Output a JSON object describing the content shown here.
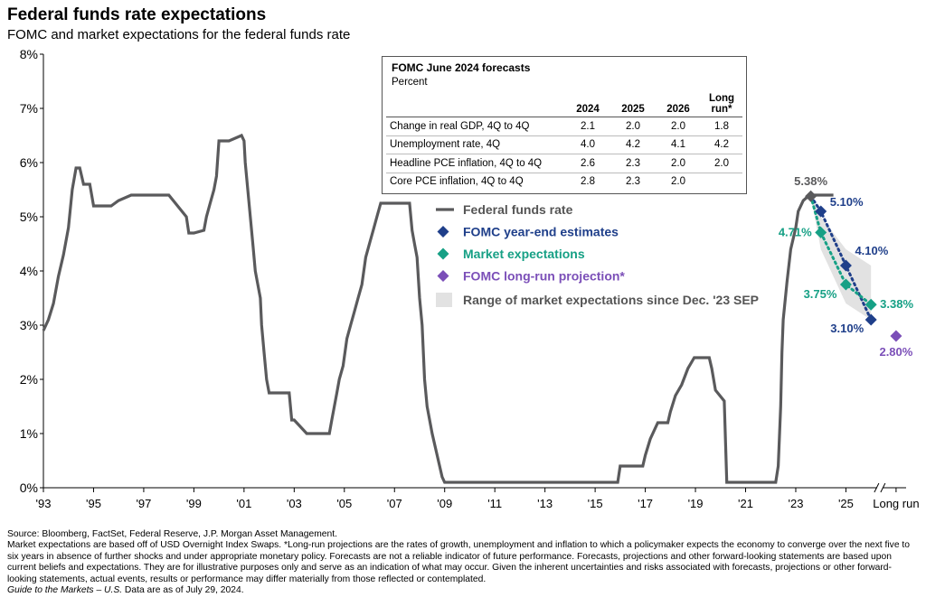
{
  "header": {
    "title": "Federal funds rate expectations",
    "subtitle": "FOMC and market expectations for the federal funds rate"
  },
  "colors": {
    "fed_funds": "#5a5a5c",
    "fomc": "#1f3f8a",
    "market": "#16a085",
    "longrun": "#7b4fb8",
    "range": "#e2e2e2",
    "table_border": "#555555"
  },
  "forecast_table": {
    "title": "FOMC June 2024 forecasts",
    "subtitle": "Percent",
    "columns": [
      "2024",
      "2025",
      "2026",
      "Long run*"
    ],
    "rows": [
      {
        "label": "Change in real GDP, 4Q to 4Q",
        "values": [
          "2.1",
          "2.0",
          "2.0",
          "1.8"
        ]
      },
      {
        "label": "Unemployment rate, 4Q",
        "values": [
          "4.0",
          "4.2",
          "4.1",
          "4.2"
        ]
      },
      {
        "label": "Headline PCE inflation, 4Q to 4Q",
        "values": [
          "2.6",
          "2.3",
          "2.0",
          "2.0"
        ]
      },
      {
        "label": "Core PCE inflation, 4Q to 4Q",
        "values": [
          "2.8",
          "2.3",
          "2.0",
          ""
        ]
      }
    ]
  },
  "legend": [
    {
      "label": "Federal funds rate",
      "marker": "line",
      "color_key": "fed_funds"
    },
    {
      "label": "FOMC year-end estimates",
      "marker": "diamond",
      "color_key": "fomc"
    },
    {
      "label": "Market expectations",
      "marker": "diamond",
      "color_key": "market"
    },
    {
      "label": "FOMC long-run projection*",
      "marker": "diamond",
      "color_key": "longrun"
    },
    {
      "label": "Range of market expectations since Dec. '23 SEP",
      "marker": "box",
      "color_key": "range"
    }
  ],
  "chart_data": {
    "type": "line",
    "title": "Federal funds rate expectations",
    "subtitle": "FOMC and market expectations for the federal funds rate",
    "ylim": [
      0,
      8
    ],
    "y_ticks": [
      "0%",
      "1%",
      "2%",
      "3%",
      "4%",
      "5%",
      "6%",
      "7%",
      "8%"
    ],
    "x_range": [
      1993,
      2027.4
    ],
    "x_ticks": [
      {
        "value": 1993,
        "label": "'93"
      },
      {
        "value": 1995,
        "label": "'95"
      },
      {
        "value": 1997,
        "label": "'97"
      },
      {
        "value": 1999,
        "label": "'99"
      },
      {
        "value": 2001,
        "label": "'01"
      },
      {
        "value": 2003,
        "label": "'03"
      },
      {
        "value": 2005,
        "label": "'05"
      },
      {
        "value": 2007,
        "label": "'07"
      },
      {
        "value": 2009,
        "label": "'09"
      },
      {
        "value": 2011,
        "label": "'11"
      },
      {
        "value": 2013,
        "label": "'13"
      },
      {
        "value": 2015,
        "label": "'15"
      },
      {
        "value": 2017,
        "label": "'17"
      },
      {
        "value": 2019,
        "label": "'19"
      },
      {
        "value": 2021,
        "label": "'21"
      },
      {
        "value": 2023,
        "label": "'23"
      },
      {
        "value": 2025,
        "label": "'25"
      },
      {
        "value": 2027,
        "label": "Long run"
      }
    ],
    "grid": false,
    "series": [
      {
        "name": "Federal funds rate",
        "color_key": "fed_funds",
        "x": [
          1993.0,
          1993.2,
          1993.4,
          1993.6,
          1993.8,
          1994.0,
          1994.15,
          1994.3,
          1994.45,
          1994.6,
          1994.85,
          1995.0,
          1995.1,
          1995.5,
          1995.7,
          1996.0,
          1996.5,
          1997.0,
          1997.3,
          1997.6,
          1998.0,
          1998.7,
          1998.8,
          1998.9,
          1999.0,
          1999.4,
          1999.5,
          1999.65,
          1999.8,
          1999.9,
          2000.0,
          2000.2,
          2000.4,
          2000.9,
          2001.0,
          2001.05,
          2001.15,
          2001.25,
          2001.35,
          2001.45,
          2001.55,
          2001.65,
          2001.7,
          2001.8,
          2001.9,
          2002.0,
          2002.8,
          2002.9,
          2003.0,
          2003.5,
          2003.6,
          2004.0,
          2004.4,
          2004.5,
          2004.6,
          2004.7,
          2004.8,
          2004.95,
          2005.1,
          2005.25,
          2005.4,
          2005.55,
          2005.7,
          2005.85,
          2006.0,
          2006.15,
          2006.3,
          2006.45,
          2007.6,
          2007.7,
          2007.8,
          2007.9,
          2008.0,
          2008.1,
          2008.2,
          2008.3,
          2008.5,
          2008.9,
          2009.0,
          2015.9,
          2016.0,
          2016.9,
          2017.0,
          2017.2,
          2017.5,
          2017.9,
          2018.0,
          2018.2,
          2018.45,
          2018.7,
          2018.95,
          2019.55,
          2019.65,
          2019.8,
          2020.15,
          2020.25,
          2022.2,
          2022.3,
          2022.4,
          2022.45,
          2022.5,
          2022.65,
          2022.8,
          2022.9,
          2023.0,
          2023.1,
          2023.3,
          2023.55,
          2024.5
        ],
        "y": [
          2.9,
          3.1,
          3.4,
          3.9,
          4.3,
          4.8,
          5.5,
          5.9,
          5.9,
          5.6,
          5.6,
          5.2,
          5.2,
          5.2,
          5.2,
          5.3,
          5.4,
          5.4,
          5.4,
          5.4,
          5.4,
          5.0,
          4.7,
          4.7,
          4.7,
          4.75,
          5.0,
          5.25,
          5.5,
          5.75,
          6.4,
          6.4,
          6.4,
          6.5,
          6.4,
          6.0,
          5.5,
          5.0,
          4.5,
          4.0,
          3.75,
          3.5,
          3.0,
          2.5,
          2.0,
          1.75,
          1.75,
          1.25,
          1.25,
          1.0,
          1.0,
          1.0,
          1.0,
          1.25,
          1.5,
          1.75,
          2.0,
          2.25,
          2.75,
          3.0,
          3.25,
          3.5,
          3.75,
          4.25,
          4.5,
          4.75,
          5.0,
          5.25,
          5.25,
          4.75,
          4.5,
          4.25,
          3.5,
          3.0,
          2.0,
          1.5,
          1.0,
          0.2,
          0.1,
          0.1,
          0.4,
          0.4,
          0.6,
          0.9,
          1.2,
          1.2,
          1.4,
          1.7,
          1.9,
          2.2,
          2.4,
          2.4,
          2.2,
          1.8,
          1.6,
          0.1,
          0.1,
          0.4,
          1.5,
          2.5,
          3.1,
          3.8,
          4.4,
          4.6,
          4.8,
          5.1,
          5.3,
          5.4,
          5.4
        ]
      },
      {
        "name": "FOMC year-end estimates",
        "color_key": "fomc",
        "x": [
          2023.6,
          2024.0,
          2025.0,
          2026.0
        ],
        "y": [
          5.38,
          5.1,
          4.1,
          3.1
        ],
        "labels": [
          "5.38%",
          "5.10%",
          "4.10%",
          "3.10%"
        ]
      },
      {
        "name": "Market expectations",
        "color_key": "market",
        "x": [
          2023.6,
          2024.0,
          2025.0,
          2026.0
        ],
        "y": [
          5.38,
          4.71,
          3.75,
          3.38
        ],
        "labels": [
          "",
          "4.71%",
          "3.75%",
          "3.38%"
        ]
      },
      {
        "name": "FOMC long-run projection*",
        "color_key": "longrun",
        "x": [
          2027.0
        ],
        "y": [
          2.8
        ],
        "labels": [
          "2.80%"
        ]
      }
    ],
    "range_band": {
      "name": "Range of market expectations since Dec. '23 SEP",
      "color_key": "range",
      "x": [
        2023.6,
        2024.0,
        2025.0,
        2026.0
      ],
      "upper": [
        5.38,
        5.0,
        4.4,
        4.1
      ],
      "lower": [
        5.38,
        4.4,
        3.4,
        3.1
      ]
    }
  },
  "footer": {
    "source": "Source: Bloomberg, FactSet, Federal Reserve, J.P. Morgan Asset Management.",
    "notes": "Market expectations are based off of USD Overnight Index Swaps. *Long-run projections are the rates of growth, unemployment and inflation to which a policymaker expects the economy to converge over the next five to six years in absence of further shocks and under appropriate monetary policy. Forecasts are not a reliable indicator of future performance. Forecasts, projections and other forward-looking statements are based upon current beliefs and expectations. They are for illustrative purposes only and serve as an indication of what may occur. Given the inherent uncertainties and risks associated with forecasts, projections or other forward-looking statements, actual events, results or performance may differ materially from those reflected or contemplated.",
    "guide": "Guide to the Markets – U.S.",
    "asof": " Data are as of July 29, 2024."
  }
}
